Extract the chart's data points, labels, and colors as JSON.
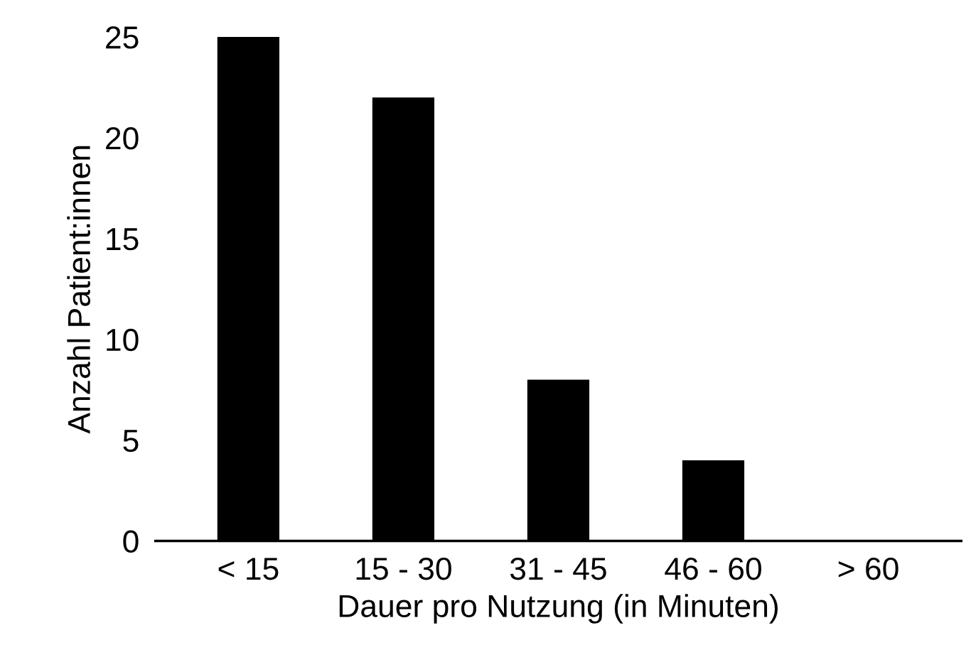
{
  "chart_data": {
    "type": "bar",
    "xlabel": "Dauer pro Nutzung (in Minuten)",
    "ylabel": "Anzahl Patient:innen",
    "categories": [
      "< 15",
      "15 - 30",
      "31 - 45",
      "46 - 60",
      "> 60"
    ],
    "values": [
      25,
      22,
      8,
      4,
      0
    ],
    "color": "#000000",
    "ylim": [
      0,
      25
    ],
    "yticks": [
      0,
      5,
      10,
      15,
      20,
      25
    ],
    "grid": false,
    "legend": false
  }
}
